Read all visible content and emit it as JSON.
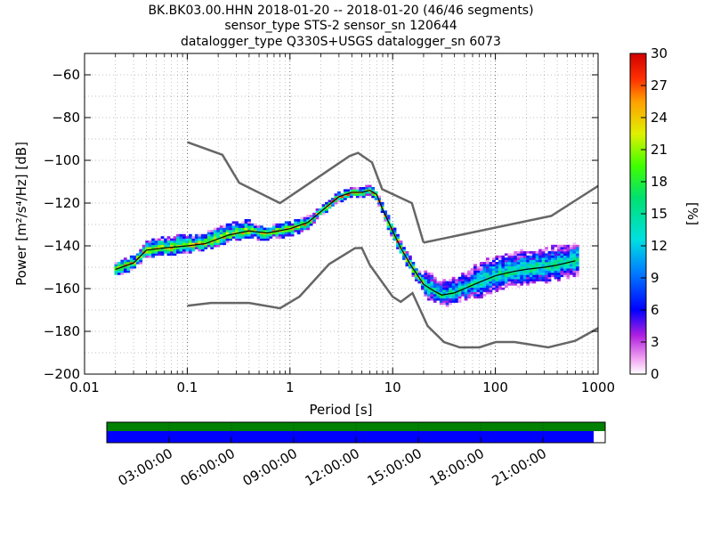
{
  "title_lines": [
    "BK.BK03.00.HHN   2018-01-20 -- 2018-01-20  (46/46 segments)",
    "sensor_type STS-2 sensor_sn 120644",
    "datalogger_type Q330S+USGS datalogger_sn 6073"
  ],
  "chart_data": {
    "type": "heatmap",
    "xlabel": "Period [s]",
    "ylabel": "Power [m²/s⁴/Hz] [dB]",
    "x_scale": "log",
    "xlim": [
      0.01,
      1000
    ],
    "ylim": [
      -200,
      -50
    ],
    "x_ticks": [
      0.01,
      0.1,
      1,
      10,
      100,
      1000
    ],
    "x_tick_labels": [
      "0.01",
      "0.1",
      "1",
      "10",
      "100",
      "1000"
    ],
    "y_ticks": [
      -200,
      -180,
      -160,
      -140,
      -120,
      -100,
      -80,
      -60
    ],
    "y_tick_labels": [
      "−200",
      "−180",
      "−160",
      "−140",
      "−120",
      "−100",
      "−80",
      "−60"
    ],
    "grid": true,
    "colorbar": {
      "label": "[%]",
      "range": [
        0,
        30
      ],
      "ticks": [
        0,
        3,
        6,
        9,
        12,
        15,
        18,
        21,
        24,
        27,
        30
      ],
      "tick_labels": [
        "0",
        "3",
        "6",
        "9",
        "12",
        "15",
        "18",
        "21",
        "24",
        "27",
        "30"
      ]
    },
    "noise_models": [
      {
        "x": [
          0.1,
          0.22,
          0.32,
          0.8,
          3.8,
          4.6,
          6.3,
          7.9,
          15.4,
          20
        ],
        "y": [
          -91.5,
          -97.4,
          -110.5,
          -120,
          -98,
          -96.5,
          -101,
          -113.5,
          -120,
          -138.5
        ]
      },
      {
        "x": [
          20,
          350,
          1000
        ],
        "y": [
          -138.5,
          -126,
          -112
        ]
      },
      {
        "x": [
          0.1,
          0.17,
          0.4,
          0.8,
          1.24,
          2.4,
          4.3,
          5,
          6,
          10,
          12,
          15.6,
          21.9,
          31.6,
          45,
          70,
          101,
          154,
          328,
          600,
          1000
        ],
        "y": [
          -168,
          -166.7,
          -166.7,
          -169.2,
          -163.7,
          -148.6,
          -141.1,
          -141,
          -149,
          -163.8,
          -166.2,
          -162.1,
          -177.5,
          -185,
          -187.5,
          -187.5,
          -185,
          -185,
          -187.5,
          -184.4,
          -178.5
        ]
      }
    ],
    "psd_median": {
      "x": [
        0.02,
        0.03,
        0.04,
        0.06,
        0.1,
        0.15,
        0.25,
        0.4,
        0.6,
        1,
        1.5,
        2,
        3,
        4,
        5,
        6,
        7,
        8,
        10,
        12,
        15,
        20,
        25,
        30,
        40,
        50,
        70,
        100,
        150,
        200,
        300,
        400,
        600
      ],
      "y": [
        -151,
        -148,
        -142,
        -141,
        -140,
        -139,
        -135,
        -133,
        -134,
        -132,
        -129,
        -124,
        -117,
        -115,
        -115,
        -114,
        -116,
        -123,
        -133,
        -141,
        -149,
        -158,
        -161,
        -163,
        -162,
        -160,
        -157,
        -154,
        -152,
        -151,
        -150,
        -149,
        -147
      ]
    },
    "series_color": "#000000",
    "noise_model_color": "#666666"
  },
  "availability": {
    "time_labels": [
      "03:00:00",
      "06:00:00",
      "09:00:00",
      "12:00:00",
      "15:00:00",
      "18:00:00",
      "21:00:00"
    ],
    "data_fraction": 0.977,
    "data_color": "#0000ff",
    "segment_color": "#008000"
  }
}
